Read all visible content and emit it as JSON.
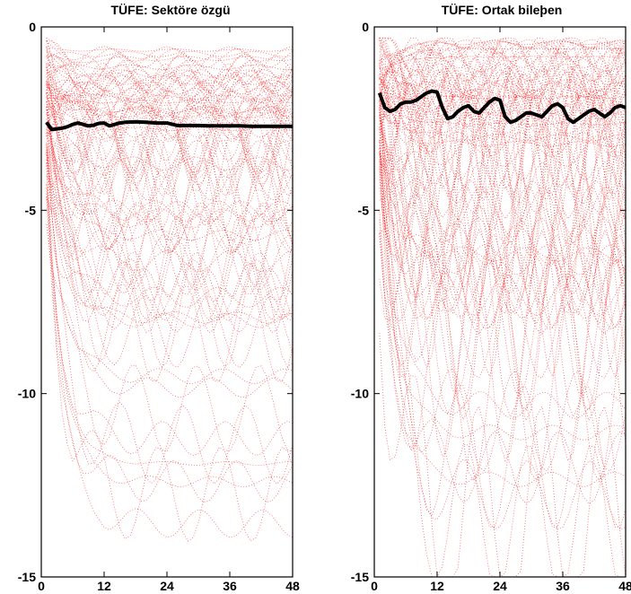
{
  "chart_data": [
    {
      "type": "line",
      "title": "TÜFE: Sektöre özgü",
      "xlabel": "",
      "ylabel": "",
      "xlim": [
        0,
        48
      ],
      "ylim": [
        -15,
        0
      ],
      "xticks": [
        "0",
        "12",
        "24",
        "36",
        "48"
      ],
      "yticks": [
        "0",
        "-5",
        "-10",
        "-15"
      ],
      "grid": false,
      "legend": "none",
      "colors": {
        "scatter": "#ff0000",
        "line": "#000000"
      },
      "series": [
        {
          "style": "thick-line",
          "x": [
            1,
            2,
            3,
            4,
            5,
            6,
            7,
            8,
            9,
            10,
            11,
            12,
            13,
            14,
            15,
            16,
            18,
            20,
            22,
            24,
            26,
            28,
            30,
            32,
            34,
            36,
            38,
            40,
            42,
            44,
            46,
            48
          ],
          "y": [
            -2.6,
            -2.8,
            -2.78,
            -2.76,
            -2.72,
            -2.66,
            -2.62,
            -2.66,
            -2.7,
            -2.68,
            -2.63,
            -2.62,
            -2.7,
            -2.66,
            -2.62,
            -2.6,
            -2.59,
            -2.6,
            -2.62,
            -2.62,
            -2.69,
            -2.69,
            -2.69,
            -2.7,
            -2.7,
            -2.7,
            -2.7,
            -2.71,
            -2.71,
            -2.71,
            -2.71,
            -2.71
          ]
        }
      ],
      "scatter_cloud": "dense red dotted impulse-response paths, concentrated between 0 and -4, spreading down to -15"
    },
    {
      "type": "line",
      "title": "TÜFE: Ortak bileþen",
      "xlabel": "",
      "ylabel": "",
      "xlim": [
        0,
        48
      ],
      "ylim": [
        -15,
        0
      ],
      "xticks": [
        "0",
        "12",
        "24",
        "36",
        "48"
      ],
      "yticks": [
        "0",
        "-5",
        "-10",
        "-15"
      ],
      "grid": false,
      "legend": "none",
      "colors": {
        "scatter": "#ff0000",
        "line": "#000000"
      },
      "series": [
        {
          "style": "thick-line",
          "x": [
            1,
            2,
            3,
            4,
            5,
            6,
            7,
            8,
            9,
            10,
            11,
            12,
            13,
            14,
            15,
            16,
            17,
            18,
            19,
            20,
            21,
            22,
            23,
            24,
            25,
            26,
            27,
            28,
            29,
            30,
            31,
            32,
            33,
            34,
            35,
            36,
            37,
            38,
            39,
            40,
            41,
            42,
            43,
            44,
            45,
            46,
            47,
            48
          ],
          "y": [
            -1.8,
            -2.2,
            -2.3,
            -2.25,
            -2.1,
            -2.05,
            -2.05,
            -2.0,
            -1.9,
            -1.8,
            -1.75,
            -1.78,
            -2.2,
            -2.5,
            -2.45,
            -2.3,
            -2.2,
            -2.15,
            -2.3,
            -2.35,
            -2.2,
            -2.05,
            -1.95,
            -2.0,
            -2.45,
            -2.6,
            -2.55,
            -2.45,
            -2.35,
            -2.35,
            -2.4,
            -2.45,
            -2.3,
            -2.15,
            -2.1,
            -2.2,
            -2.5,
            -2.6,
            -2.5,
            -2.4,
            -2.3,
            -2.25,
            -2.35,
            -2.45,
            -2.35,
            -2.2,
            -2.15,
            -2.2
          ]
        }
      ],
      "scatter_cloud": "dense red dotted impulse-response paths with 12-period zig-zags, concentrated between 0 and -3, spreading down to -15"
    }
  ]
}
